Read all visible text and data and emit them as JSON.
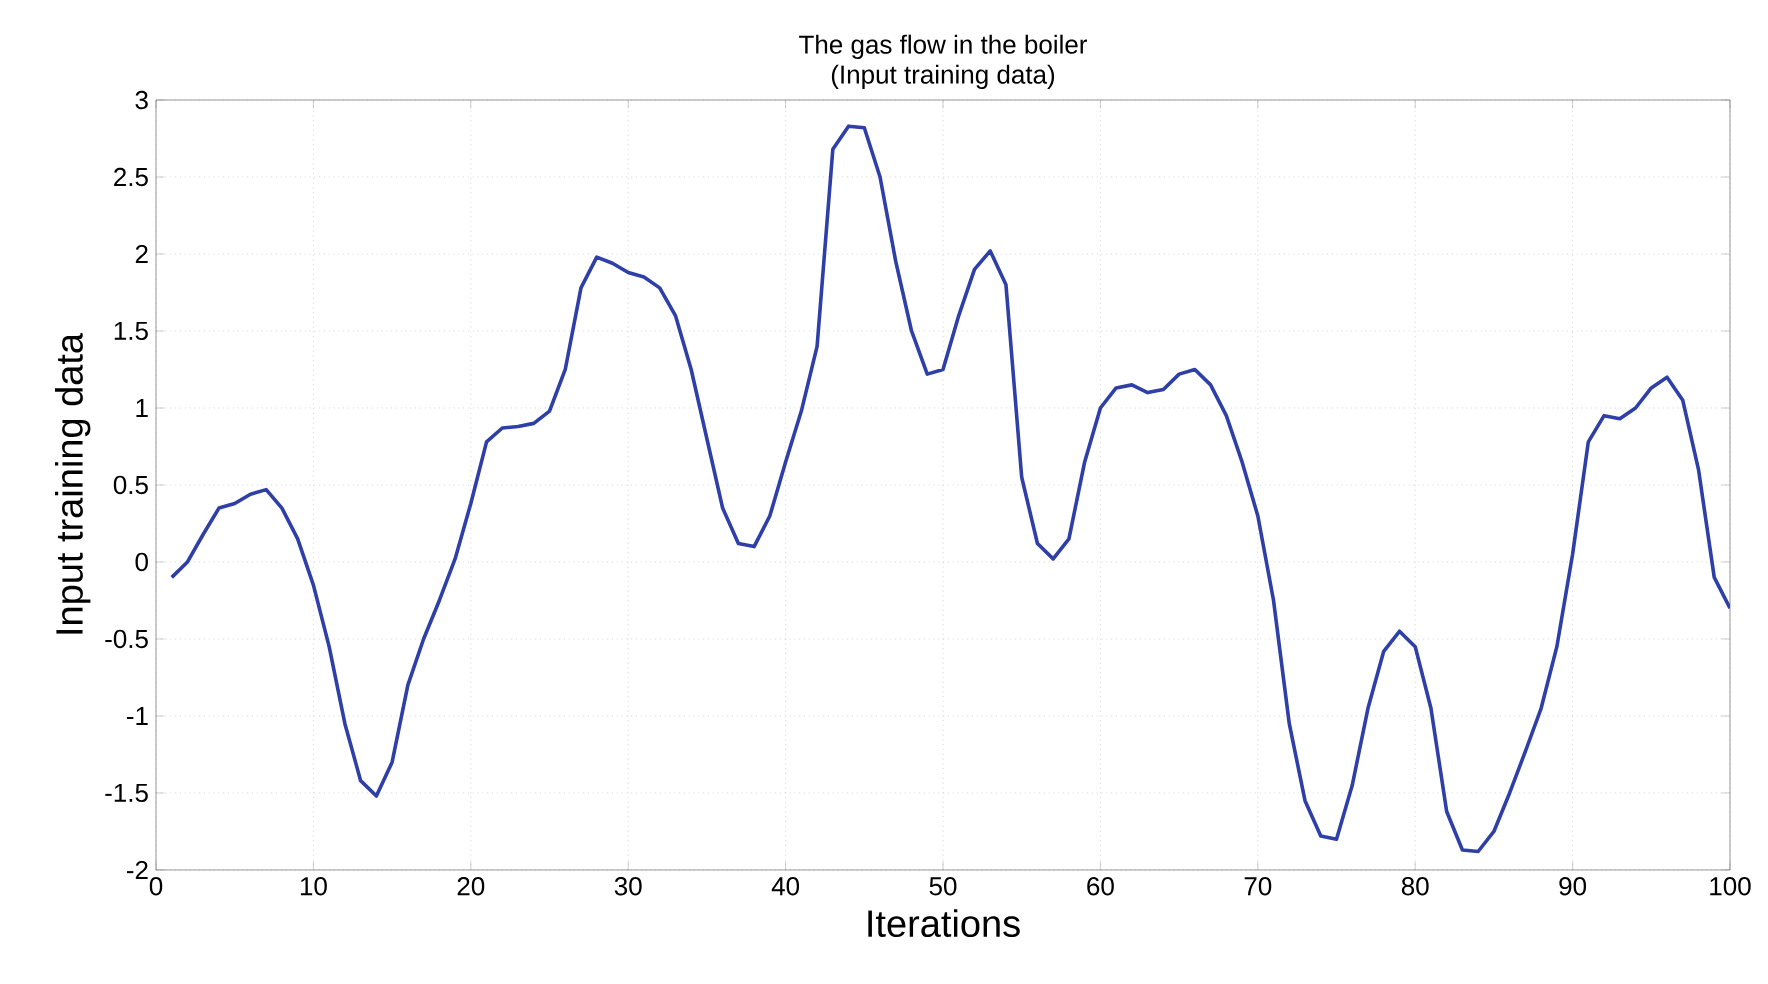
{
  "chart_data": {
    "type": "line",
    "title": "The gas flow in the boiler",
    "subtitle": "(Input training data)",
    "xlabel": "Iterations",
    "ylabel": "Input training data",
    "x": [
      1,
      2,
      3,
      4,
      5,
      6,
      7,
      8,
      9,
      10,
      11,
      12,
      13,
      14,
      15,
      16,
      17,
      18,
      19,
      20,
      21,
      22,
      23,
      24,
      25,
      26,
      27,
      28,
      29,
      30,
      31,
      32,
      33,
      34,
      35,
      36,
      37,
      38,
      39,
      40,
      41,
      42,
      43,
      44,
      45,
      46,
      47,
      48,
      49,
      50,
      51,
      52,
      53,
      54,
      55,
      56,
      57,
      58,
      59,
      60,
      61,
      62,
      63,
      64,
      65,
      66,
      67,
      68,
      69,
      70,
      71,
      72,
      73,
      74,
      75,
      76,
      77,
      78,
      79,
      80,
      81,
      82,
      83,
      84,
      85,
      86,
      87,
      88,
      89,
      90,
      91,
      92,
      93,
      94,
      95,
      96,
      97,
      98,
      99,
      100
    ],
    "series": [
      {
        "color": "#2e3fa8",
        "values": [
          -0.1,
          0.0,
          0.18,
          0.35,
          0.38,
          0.44,
          0.47,
          0.35,
          0.15,
          -0.15,
          -0.55,
          -1.05,
          -1.42,
          -1.52,
          -1.3,
          -0.8,
          -0.5,
          -0.25,
          0.02,
          0.38,
          0.78,
          0.87,
          0.88,
          0.9,
          0.98,
          1.25,
          1.78,
          1.98,
          1.94,
          1.88,
          1.85,
          1.78,
          1.6,
          1.25,
          0.8,
          0.35,
          0.12,
          0.1,
          0.3,
          0.65,
          0.98,
          1.4,
          2.68,
          2.83,
          2.82,
          2.5,
          1.95,
          1.5,
          1.22,
          1.25,
          1.6,
          1.9,
          2.02,
          1.8,
          0.55,
          0.12,
          0.02,
          0.15,
          0.65,
          1.0,
          1.13,
          1.15,
          1.1,
          1.12,
          1.22,
          1.25,
          1.15,
          0.95,
          0.65,
          0.3,
          -0.25,
          -1.05,
          -1.55,
          -1.78,
          -1.8,
          -1.45,
          -0.95,
          -0.58,
          -0.45,
          -0.55,
          -0.95,
          -1.62,
          -1.87,
          -1.88,
          -1.75,
          -1.5,
          -1.23,
          -0.95,
          -0.55,
          0.05,
          0.78,
          0.95,
          0.93,
          1.0,
          1.13,
          1.2,
          1.05,
          0.6,
          -0.1,
          -0.3
        ]
      }
    ],
    "xlim": [
      0,
      100
    ],
    "ylim": [
      -2,
      3
    ],
    "xticks": [
      0,
      10,
      20,
      30,
      40,
      50,
      60,
      70,
      80,
      90,
      100
    ],
    "yticks": [
      -2,
      -1.5,
      -1,
      -0.5,
      0,
      0.5,
      1,
      1.5,
      2,
      2.5,
      3
    ],
    "grid": true,
    "marker": "none",
    "line_style": "solid"
  }
}
